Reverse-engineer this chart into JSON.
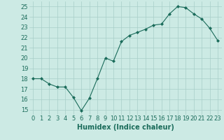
{
  "x": [
    0,
    1,
    2,
    3,
    4,
    5,
    6,
    7,
    8,
    9,
    10,
    11,
    12,
    13,
    14,
    15,
    16,
    17,
    18,
    19,
    20,
    21,
    22,
    23
  ],
  "y": [
    18.0,
    18.0,
    17.5,
    17.2,
    17.2,
    16.2,
    14.9,
    16.1,
    18.0,
    20.0,
    19.7,
    21.6,
    22.2,
    22.5,
    22.8,
    23.2,
    23.3,
    24.3,
    25.0,
    24.9,
    24.3,
    23.8,
    22.9,
    21.7
  ],
  "line_color": "#1a6b5a",
  "marker": "D",
  "marker_size": 2.0,
  "bg_color": "#cceae4",
  "grid_color": "#a8cec8",
  "xlabel": "Humidex (Indice chaleur)",
  "xlim": [
    -0.5,
    23.5
  ],
  "ylim": [
    14.5,
    25.5
  ],
  "yticks": [
    15,
    16,
    17,
    18,
    19,
    20,
    21,
    22,
    23,
    24,
    25
  ],
  "xtick_labels": [
    "0",
    "1",
    "2",
    "3",
    "4",
    "5",
    "6",
    "7",
    "8",
    "9",
    "10",
    "11",
    "12",
    "13",
    "14",
    "15",
    "16",
    "17",
    "18",
    "19",
    "20",
    "21",
    "22",
    "23"
  ],
  "tick_color": "#1a6b5a",
  "label_fontsize": 7,
  "tick_fontsize": 6
}
